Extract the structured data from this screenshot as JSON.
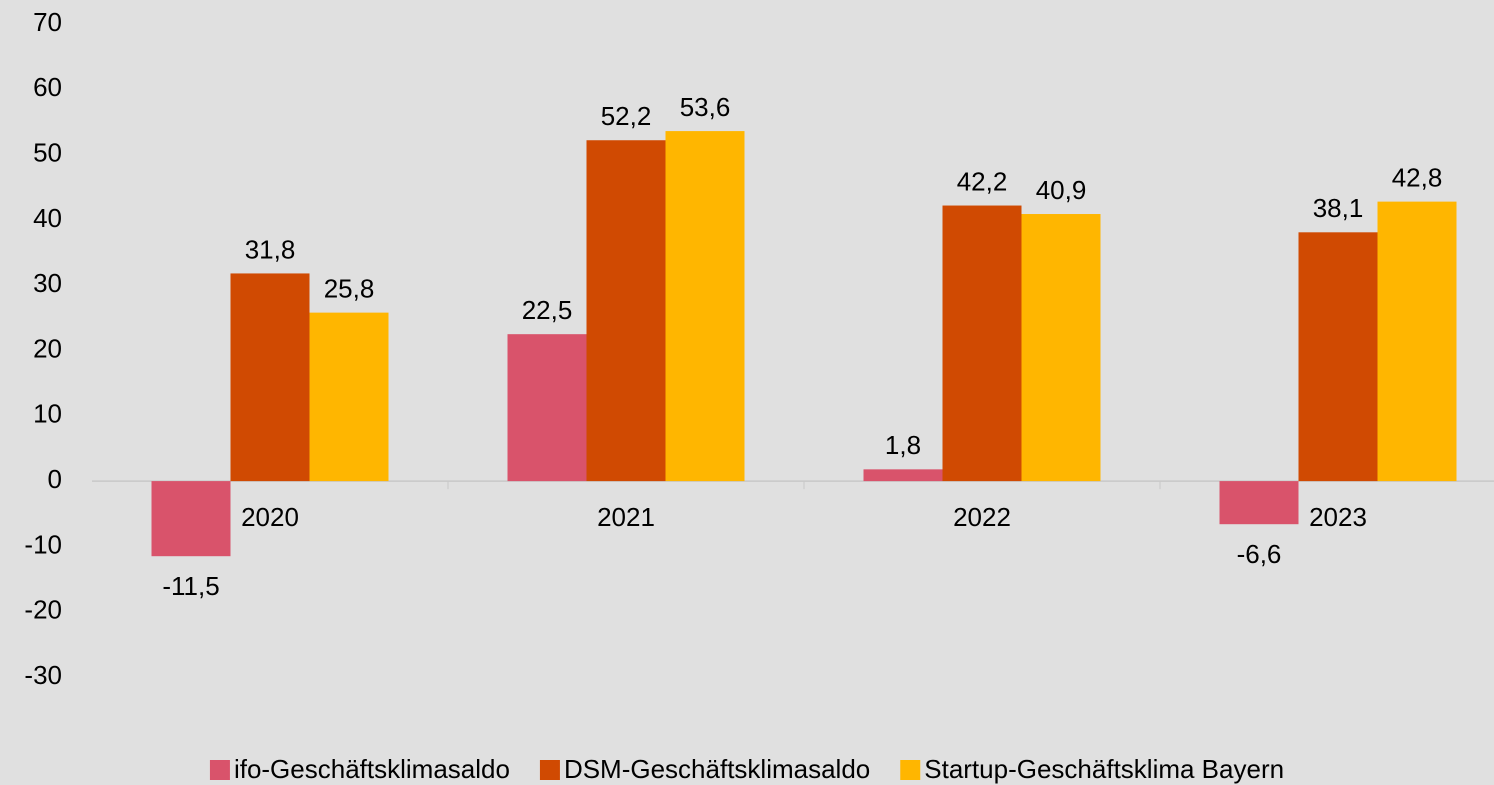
{
  "chart_data": {
    "type": "bar",
    "categories": [
      "2020",
      "2021",
      "2022",
      "2023"
    ],
    "series": [
      {
        "name": "ifo-Geschäftsklimasaldo",
        "color": "#d9536b",
        "values": [
          -11.5,
          22.5,
          1.8,
          -6.6
        ],
        "value_labels": [
          "-11,5",
          "22,5",
          "1,8",
          "-6,6"
        ]
      },
      {
        "name": "DSM-Geschäftsklimasaldo",
        "color": "#d04a02",
        "values": [
          31.8,
          52.2,
          42.2,
          38.1
        ],
        "value_labels": [
          "31,8",
          "52,2",
          "42,2",
          "38,1"
        ]
      },
      {
        "name": "Startup-Geschäftsklima Bayern",
        "color": "#ffb600",
        "values": [
          25.8,
          53.6,
          40.9,
          42.8
        ],
        "value_labels": [
          "25,8",
          "53,6",
          "40,9",
          "42,8"
        ]
      }
    ],
    "ylim": [
      -30,
      70
    ],
    "yticks": [
      70,
      60,
      50,
      40,
      30,
      20,
      10,
      0,
      -10,
      -20,
      -30
    ],
    "grid": false,
    "legend": "bottom"
  }
}
